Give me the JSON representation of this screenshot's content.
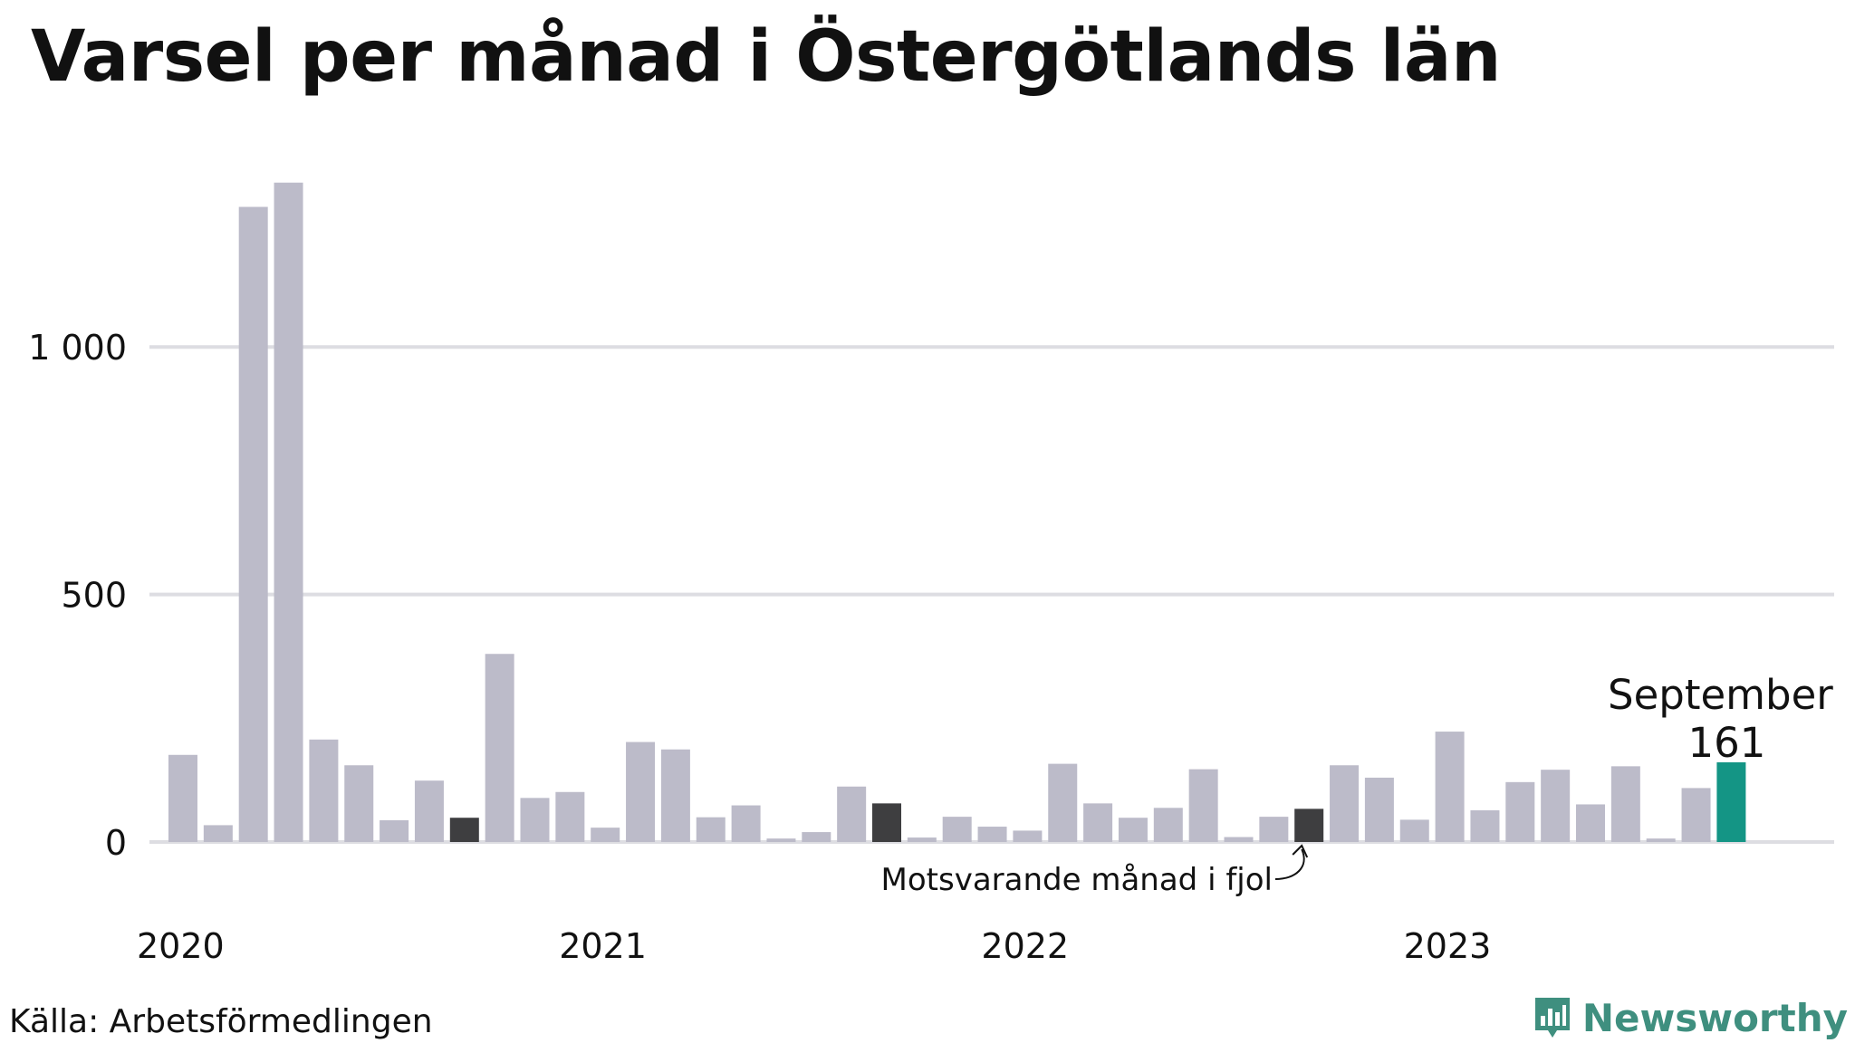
{
  "title": "Varsel per månad i Östergötlands län",
  "source": "Källa: Arbetsförmedlingen",
  "brand": {
    "name": "Newsworthy",
    "logo_icon": "bar-chart-badge-icon"
  },
  "colors": {
    "bar": "#bcbbc9",
    "comparison": "#3e3e40",
    "current": "#149585",
    "grid": "#dddde2",
    "brand": "#3f8f7f"
  },
  "annotations": {
    "current_month": "September",
    "current_value": "161",
    "comparison_note": "Motsvarande månad i fjol"
  },
  "chart_data": {
    "type": "bar",
    "ylim": [
      0,
      1390
    ],
    "yticks": [
      0,
      500,
      1000
    ],
    "ytick_labels": [
      "0",
      "500",
      "1 000"
    ],
    "xticks": [
      {
        "label": "2020",
        "index": 0
      },
      {
        "label": "2021",
        "index": 12
      },
      {
        "label": "2022",
        "index": 24
      },
      {
        "label": "2023",
        "index": 36
      }
    ],
    "categories": [
      "2020-01",
      "2020-02",
      "2020-03",
      "2020-04",
      "2020-05",
      "2020-06",
      "2020-07",
      "2020-08",
      "2020-09",
      "2020-10",
      "2020-11",
      "2020-12",
      "2021-01",
      "2021-02",
      "2021-03",
      "2021-04",
      "2021-05",
      "2021-06",
      "2021-07",
      "2021-08",
      "2021-09",
      "2021-10",
      "2021-11",
      "2021-12",
      "2022-01",
      "2022-02",
      "2022-03",
      "2022-04",
      "2022-05",
      "2022-06",
      "2022-07",
      "2022-08",
      "2022-09",
      "2022-10",
      "2022-11",
      "2022-12",
      "2023-01",
      "2023-02",
      "2023-03",
      "2023-04",
      "2023-05",
      "2023-06",
      "2023-07",
      "2023-08",
      "2023-09"
    ],
    "values": [
      176,
      34,
      1283,
      1332,
      207,
      155,
      44,
      124,
      49,
      380,
      89,
      101,
      29,
      202,
      187,
      50,
      74,
      7,
      20,
      112,
      78,
      9,
      51,
      31,
      23,
      158,
      78,
      49,
      69,
      147,
      10,
      51,
      67,
      155,
      130,
      45,
      223,
      64,
      121,
      146,
      76,
      153,
      7,
      109,
      161
    ],
    "highlight": {
      "comparison_index": 32,
      "current_index": 44,
      "prior_highlight_index": 20,
      "earlier_highlight_index": 8
    },
    "grid": true
  }
}
